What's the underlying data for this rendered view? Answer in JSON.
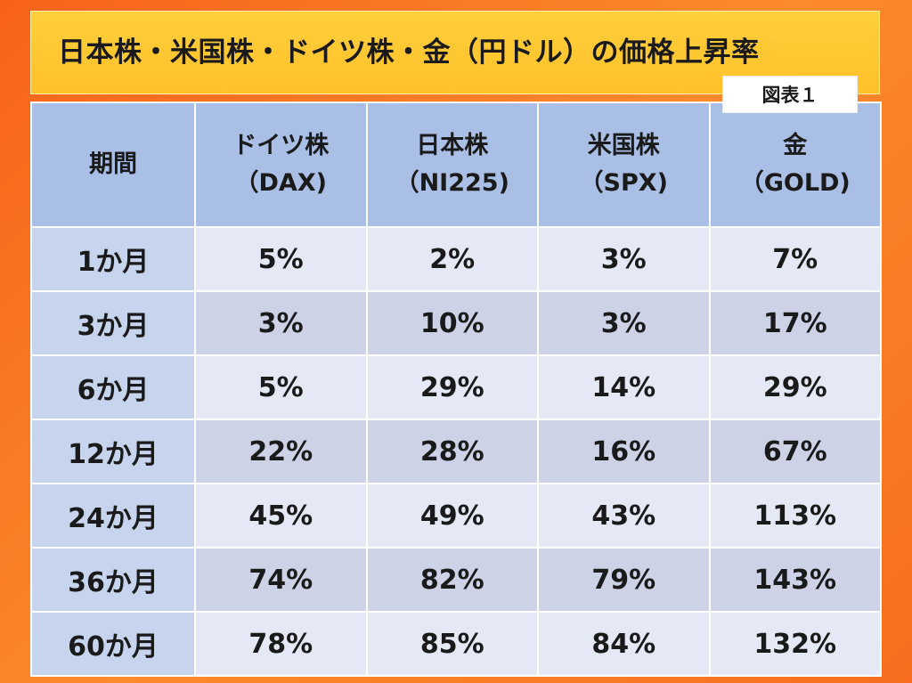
{
  "title": "日本株・米国株・ドイツ株・金（円ドル）の価格上昇率",
  "figure_label": "図表１",
  "chart_data": {
    "type": "table",
    "title": "日本株・米国株・ドイツ株・金（円ドル）の価格上昇率",
    "header_corner": "期間",
    "columns": [
      {
        "name": "ドイツ株",
        "code": "（DAX)"
      },
      {
        "name": "日本株",
        "code": "（NI225)"
      },
      {
        "name": "米国株",
        "code": "（SPX)"
      },
      {
        "name": "金",
        "code": "（GOLD)"
      }
    ],
    "rows": [
      {
        "period": "1か月",
        "values": [
          "5%",
          "2%",
          "3%",
          "7%"
        ]
      },
      {
        "period": "3か月",
        "values": [
          "3%",
          "10%",
          "3%",
          "17%"
        ]
      },
      {
        "period": "6か月",
        "values": [
          "5%",
          "29%",
          "14%",
          "29%"
        ]
      },
      {
        "period": "12か月",
        "values": [
          "22%",
          "28%",
          "16%",
          "67%"
        ]
      },
      {
        "period": "24か月",
        "values": [
          "45%",
          "49%",
          "43%",
          "113%"
        ]
      },
      {
        "period": "36か月",
        "values": [
          "74%",
          "82%",
          "79%",
          "143%"
        ]
      },
      {
        "period": "60か月",
        "values": [
          "78%",
          "85%",
          "84%",
          "132%"
        ]
      }
    ]
  },
  "colors": {
    "background": "#f7621a",
    "title_bg": "#ffc12a",
    "header_bg": "#a9bfe5",
    "period_bg": "#c6d4ee",
    "row_light": "#e5e9f5",
    "row_dark": "#cdd2e7"
  }
}
